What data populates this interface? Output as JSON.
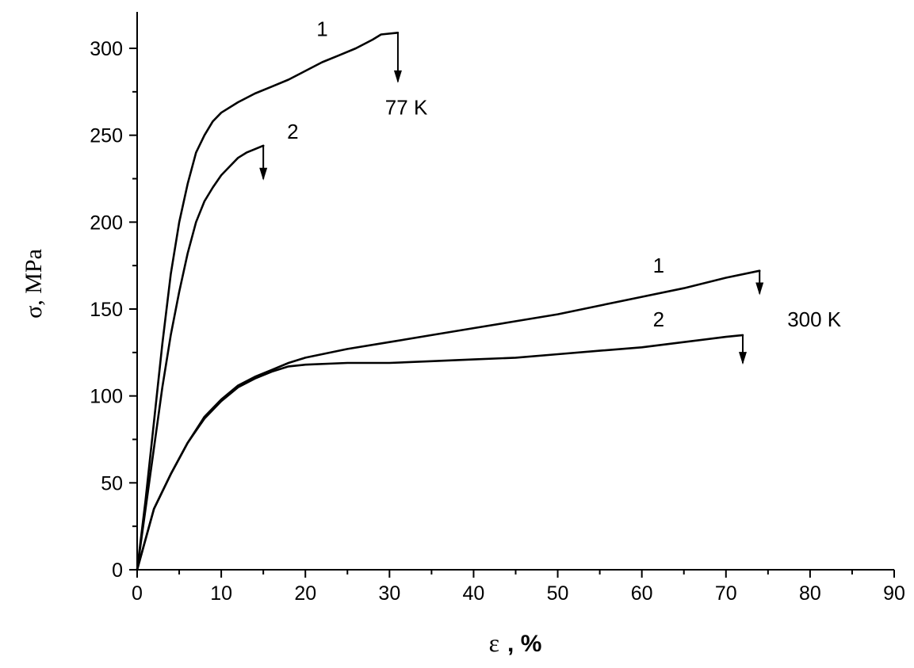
{
  "chart_data": {
    "type": "line",
    "title": "",
    "xlabel_symbol": "ε",
    "xlabel_unit": ", %",
    "ylabel": "σ, MPa",
    "xlim": [
      0,
      90
    ],
    "ylim": [
      0,
      320
    ],
    "x_major_ticks": [
      0,
      10,
      20,
      30,
      40,
      50,
      60,
      70,
      80,
      90
    ],
    "x_tick_labels": [
      "0",
      "10",
      "20",
      "30",
      "40",
      "50",
      "60",
      "70",
      "80",
      "90"
    ],
    "x_minor_ticks": [
      5,
      15,
      25,
      35,
      45,
      55,
      65,
      75,
      85
    ],
    "y_major_ticks": [
      0,
      50,
      100,
      150,
      200,
      250,
      300
    ],
    "y_tick_labels": [
      "0",
      "50",
      "100",
      "150",
      "200",
      "250",
      "300"
    ],
    "y_minor_ticks": [
      25,
      75,
      125,
      175,
      225,
      275
    ],
    "grid": false,
    "series": [
      {
        "group": "77 K",
        "label": "1",
        "x": [
          0,
          1,
          2,
          3,
          4,
          5,
          6,
          7,
          8,
          9,
          10,
          12,
          14,
          16,
          18,
          20,
          22,
          24,
          26,
          28,
          29,
          31
        ],
        "y": [
          0,
          40,
          85,
          130,
          170,
          200,
          222,
          240,
          250,
          258,
          263,
          269,
          274,
          278,
          282,
          287,
          292,
          296,
          300,
          305,
          308,
          309
        ],
        "fracture_arrow": {
          "x": 31,
          "y_from": 309,
          "y_to": 280
        }
      },
      {
        "group": "77 K",
        "label": "2",
        "x": [
          0,
          1,
          2,
          3,
          4,
          5,
          6,
          7,
          8,
          9,
          10,
          11,
          12,
          13,
          14,
          15
        ],
        "y": [
          0,
          35,
          70,
          105,
          135,
          160,
          182,
          200,
          212,
          220,
          227,
          232,
          237,
          240,
          242,
          244
        ],
        "fracture_arrow": {
          "x": 15,
          "y_from": 244,
          "y_to": 224
        }
      },
      {
        "group": "300 K",
        "label": "1",
        "x": [
          0,
          2,
          4,
          6,
          8,
          10,
          12,
          14,
          16,
          18,
          20,
          25,
          30,
          35,
          40,
          45,
          50,
          55,
          60,
          65,
          70,
          74
        ],
        "y": [
          0,
          35,
          55,
          73,
          88,
          98,
          106,
          111,
          115,
          119,
          122,
          127,
          131,
          135,
          139,
          143,
          147,
          152,
          157,
          162,
          168,
          172
        ],
        "fracture_arrow": {
          "x": 74,
          "y_from": 172,
          "y_to": 158
        }
      },
      {
        "group": "300 K",
        "label": "2",
        "x": [
          0,
          2,
          4,
          6,
          8,
          10,
          12,
          14,
          16,
          18,
          20,
          25,
          30,
          35,
          40,
          45,
          50,
          55,
          60,
          65,
          70,
          72
        ],
        "y": [
          0,
          35,
          55,
          73,
          87,
          97,
          105,
          110,
          114,
          117,
          118,
          119,
          119,
          120,
          121,
          122,
          124,
          126,
          128,
          131,
          134,
          135
        ],
        "fracture_arrow": {
          "x": 72,
          "y_from": 135,
          "y_to": 118
        }
      }
    ],
    "annotations": [
      {
        "text": "1",
        "x": 22,
        "y": 307
      },
      {
        "text": "77 K",
        "x": 32,
        "y": 262
      },
      {
        "text": "2",
        "x": 18.5,
        "y": 248
      },
      {
        "text": "1",
        "x": 62,
        "y": 171
      },
      {
        "text": "300 K",
        "x": 80.5,
        "y": 140
      },
      {
        "text": "2",
        "x": 62,
        "y": 140
      }
    ]
  }
}
